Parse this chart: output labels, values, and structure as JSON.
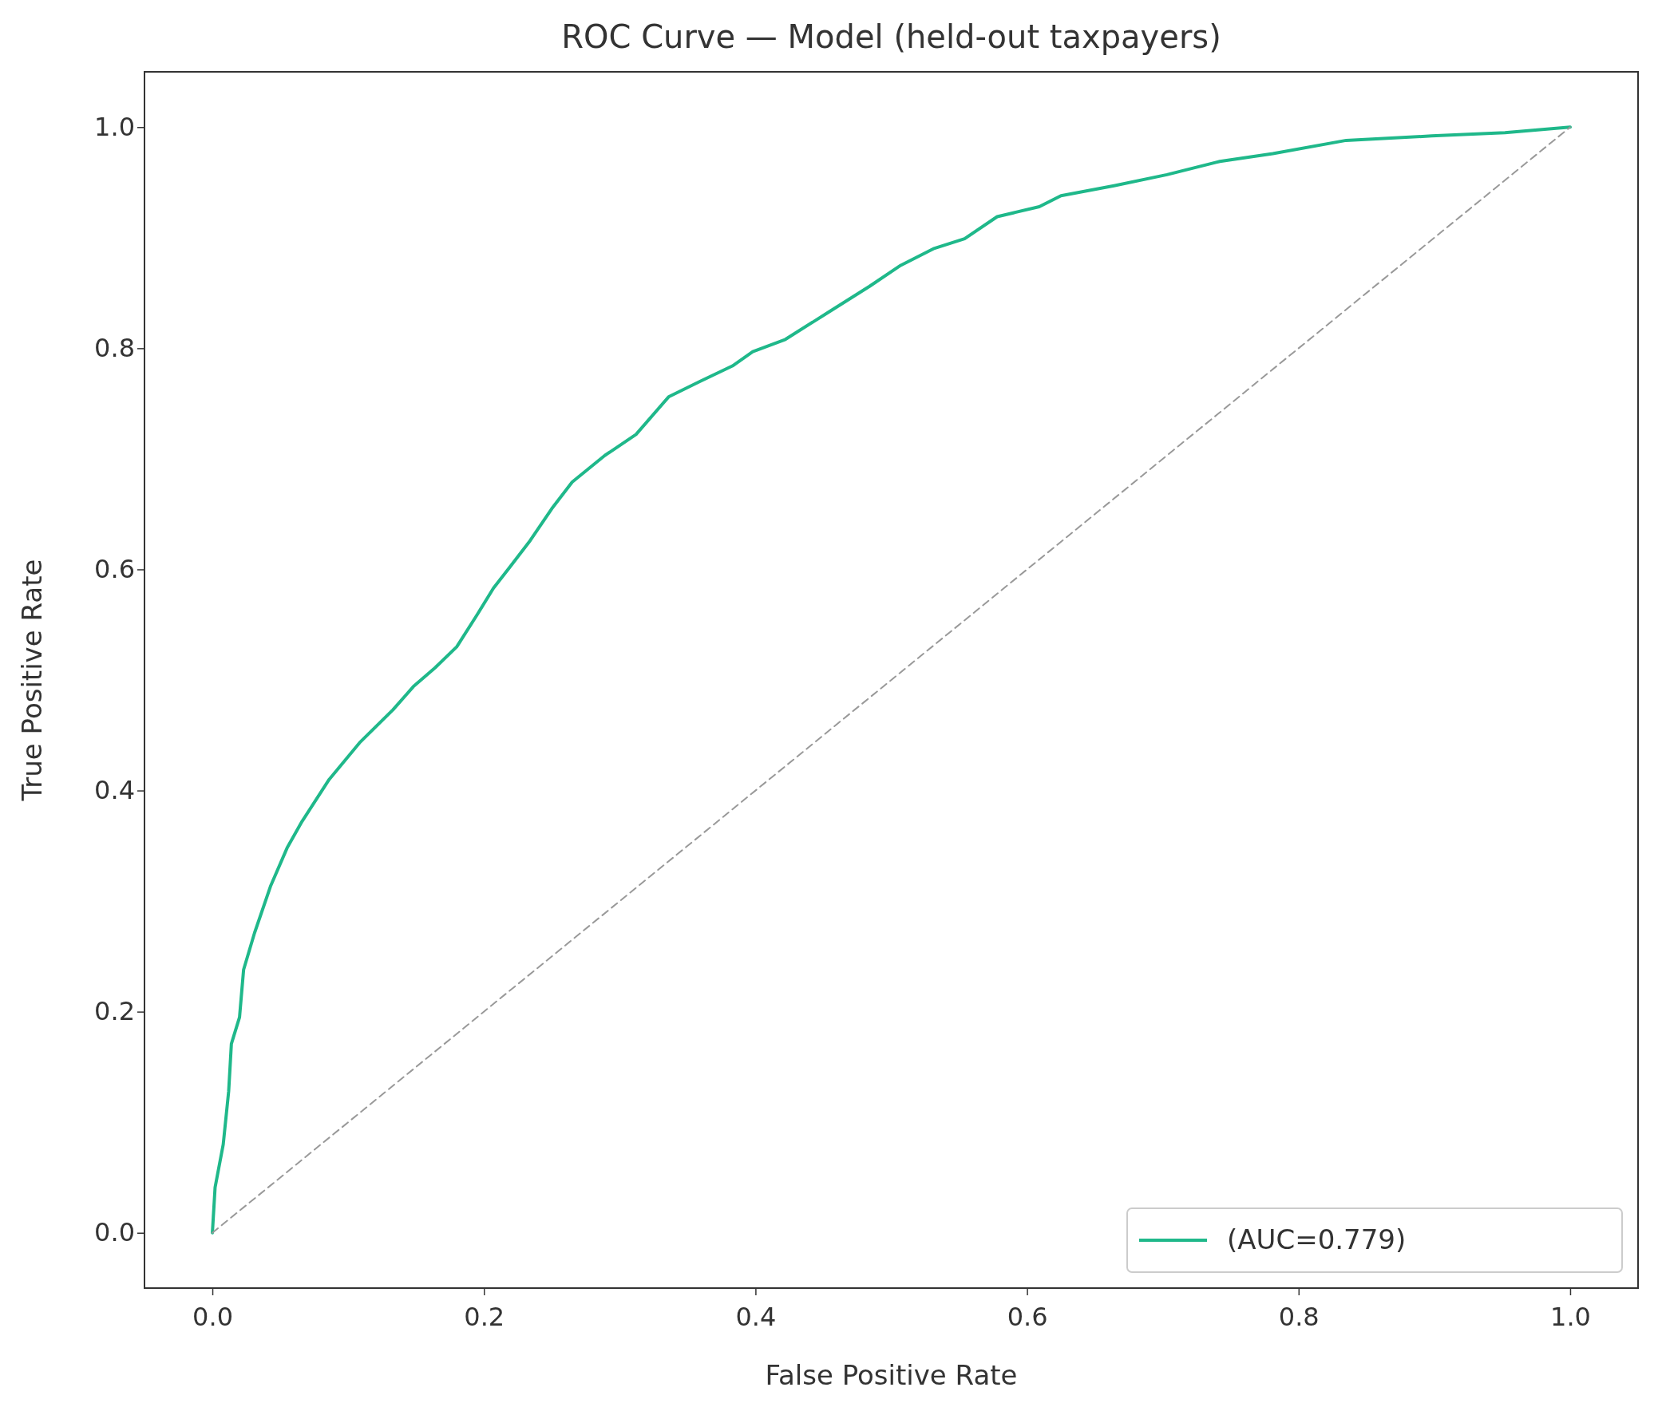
{
  "chart_data": {
    "type": "line",
    "title": "ROC Curve — Model (held-out taxpayers)",
    "xlabel": "False Positive Rate",
    "ylabel": "True Positive Rate",
    "xlim": [
      -0.05,
      1.05
    ],
    "ylim": [
      -0.05,
      1.05
    ],
    "xticks": [
      {
        "value": 0,
        "label": "0.0"
      },
      {
        "value": 0.2,
        "label": "0.2"
      },
      {
        "value": 0.4,
        "label": "0.4"
      },
      {
        "value": 0.6,
        "label": "0.6"
      },
      {
        "value": 0.8,
        "label": "0.8"
      },
      {
        "value": 1,
        "label": "1.0"
      }
    ],
    "yticks": [
      {
        "value": 0,
        "label": "0.0"
      },
      {
        "value": 0.2,
        "label": "0.2"
      },
      {
        "value": 0.4,
        "label": "0.4"
      },
      {
        "value": 0.6,
        "label": "0.6"
      },
      {
        "value": 0.8,
        "label": "0.8"
      },
      {
        "value": 1,
        "label": "1.0"
      }
    ],
    "grid": false,
    "legend": "bottom right",
    "marker": "none",
    "series": [
      {
        "name": "(AUC=0.779)",
        "color": "#1fb88a",
        "line_style": "solid",
        "x": [
          0,
          0.002,
          0.008,
          0.012,
          0.014,
          0.02,
          0.023,
          0.031,
          0.043,
          0.055,
          0.066,
          0.086,
          0.109,
          0.133,
          0.148,
          0.164,
          0.18,
          0.195,
          0.207,
          0.219,
          0.234,
          0.25,
          0.265,
          0.289,
          0.312,
          0.336,
          0.359,
          0.383,
          0.398,
          0.422,
          0.453,
          0.484,
          0.507,
          0.531,
          0.554,
          0.578,
          0.609,
          0.625,
          0.664,
          0.703,
          0.742,
          0.781,
          0.835,
          0.898,
          0.952,
          1
        ],
        "values": [
          0,
          0.041,
          0.08,
          0.128,
          0.171,
          0.195,
          0.238,
          0.271,
          0.314,
          0.348,
          0.372,
          0.41,
          0.444,
          0.473,
          0.494,
          0.511,
          0.53,
          0.559,
          0.583,
          0.602,
          0.626,
          0.655,
          0.679,
          0.703,
          0.722,
          0.756,
          0.77,
          0.784,
          0.797,
          0.808,
          0.832,
          0.856,
          0.875,
          0.89,
          0.899,
          0.919,
          0.928,
          0.938,
          0.947,
          0.957,
          0.969,
          0.976,
          0.988,
          0.992,
          0.995,
          1
        ]
      },
      {
        "color": "#999999",
        "line_style": "dashed",
        "x": [
          0,
          1
        ],
        "values": [
          0,
          1
        ]
      }
    ]
  }
}
